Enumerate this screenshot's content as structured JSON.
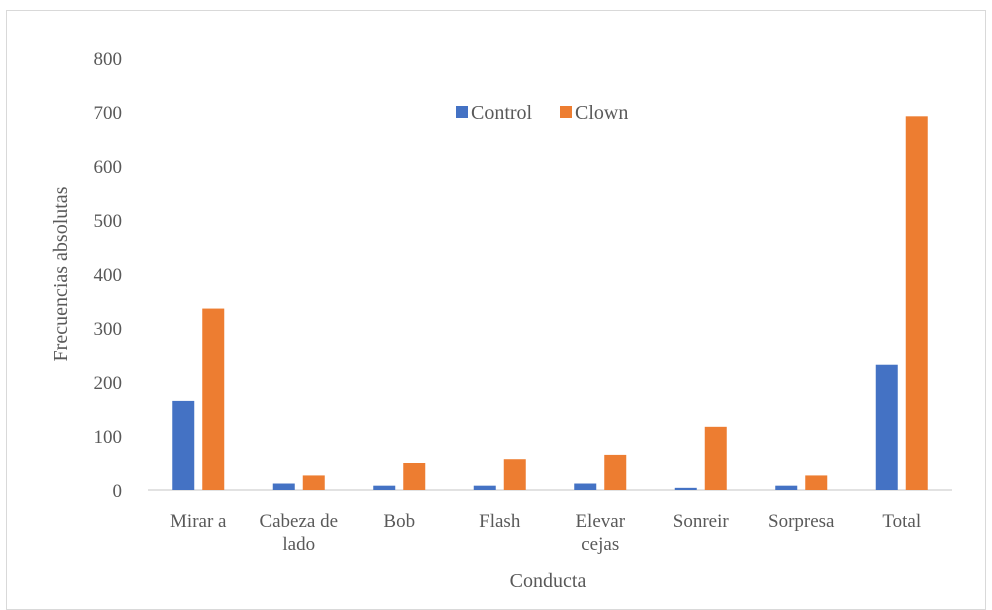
{
  "chart_data": {
    "type": "bar",
    "title": "",
    "xlabel": "Conducta",
    "ylabel": "Frecuencias absolutas",
    "ylim": [
      0,
      800
    ],
    "yticks": [
      0,
      100,
      200,
      300,
      400,
      500,
      600,
      700,
      800
    ],
    "grid": false,
    "legend": "top-center",
    "categories": [
      [
        "Mirar a"
      ],
      [
        "Cabeza de",
        "lado"
      ],
      [
        "Bob"
      ],
      [
        "Flash"
      ],
      [
        "Elevar",
        "cejas"
      ],
      [
        "Sonreir"
      ],
      [
        "Sorpresa"
      ],
      [
        "Total"
      ]
    ],
    "series": [
      {
        "name": "Control",
        "color": "#4472c4",
        "values": [
          165,
          12,
          8,
          8,
          12,
          4,
          8,
          232
        ]
      },
      {
        "name": "Clown",
        "color": "#ed7d31",
        "values": [
          336,
          27,
          50,
          57,
          65,
          117,
          27,
          692
        ]
      }
    ]
  }
}
